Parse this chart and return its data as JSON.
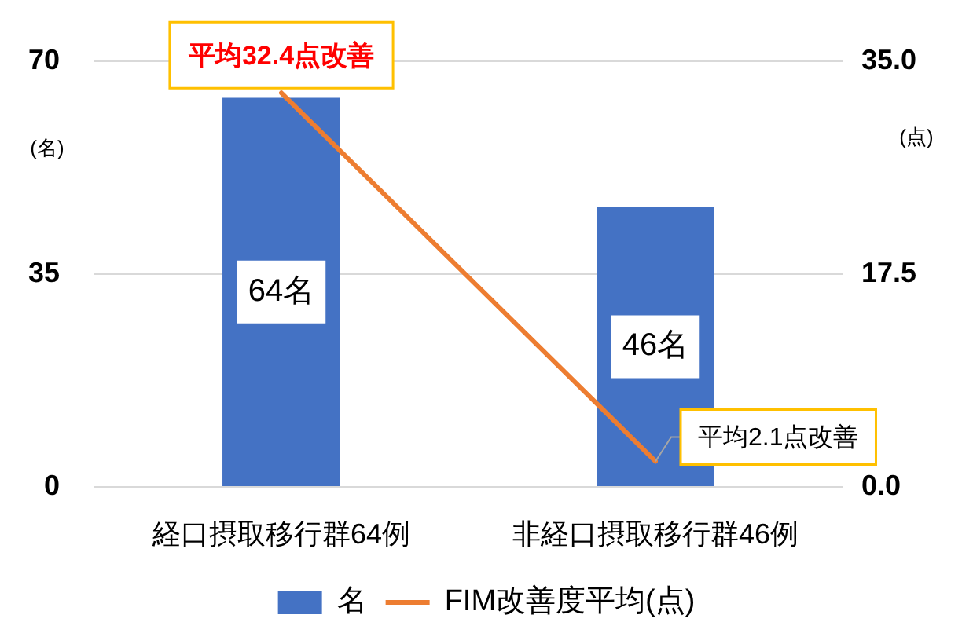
{
  "chart_data": {
    "type": "bar",
    "categories": [
      "経口摂取移行群64例",
      "非経口摂取移行群46例"
    ],
    "series": [
      {
        "name": "名",
        "color": "#4472c4",
        "values": [
          64,
          46
        ],
        "value_labels": [
          "64名",
          "46名"
        ]
      },
      {
        "name": "FIM改善度平均(点)",
        "type": "line",
        "axis": "y2",
        "color": "#ed7d31",
        "values": [
          32.4,
          2.1
        ]
      }
    ],
    "ylabel": "(名)",
    "y2label": "(点)",
    "ylim": [
      0,
      70
    ],
    "yticks": [
      0,
      35,
      70
    ],
    "y2lim": [
      0,
      35
    ],
    "y2ticks": [
      {
        "value": 0,
        "label": "0.0"
      },
      17.5,
      {
        "value": 35,
        "label": "35.0"
      }
    ],
    "annotations": [
      "平均32.4点改善",
      "平均2.1点改善"
    ],
    "grid": "y",
    "legend": "bottom",
    "marker": "none",
    "line_style": "solid"
  }
}
